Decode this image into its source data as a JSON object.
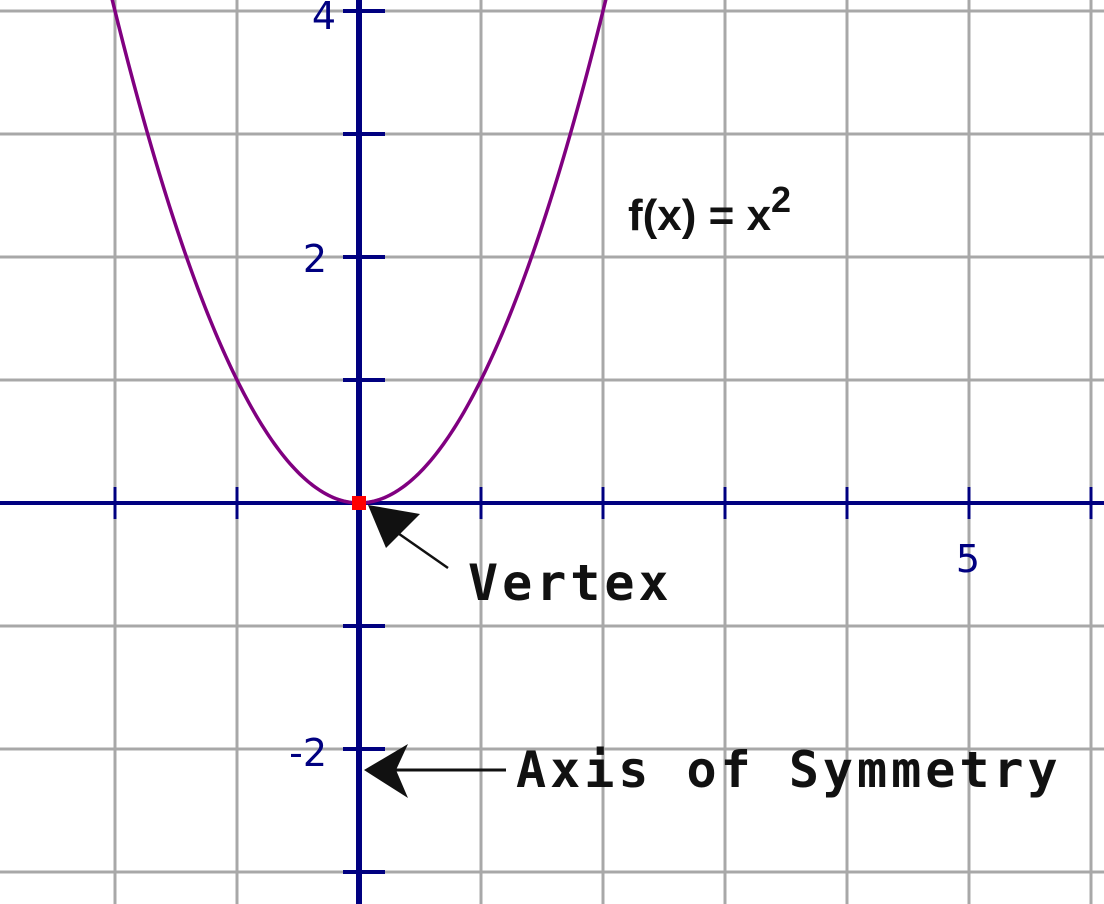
{
  "chart_data": {
    "type": "line",
    "title": "",
    "xlabel": "",
    "ylabel": "",
    "xlim": [
      -2,
      6
    ],
    "ylim": [
      -3,
      4
    ],
    "grid": true,
    "gridlines_every": 1,
    "x_tick_labels": [
      {
        "value": 5,
        "text": "5"
      }
    ],
    "y_tick_labels": [
      {
        "value": 4,
        "text": "4"
      },
      {
        "value": 2,
        "text": "2"
      },
      {
        "value": -2,
        "text": "-2"
      }
    ],
    "series": [
      {
        "function": "x^2",
        "color": "#800080",
        "x": [
          -2,
          -1.5,
          -1,
          -0.5,
          0,
          0.5,
          1,
          1.5,
          2
        ],
        "y": [
          4,
          2.25,
          1,
          0.25,
          0,
          0.25,
          1,
          2.25,
          4
        ]
      }
    ],
    "vertex": {
      "x": 0,
      "y": 0,
      "color": "#ff0000"
    },
    "function_label": {
      "base": "f(x) = x",
      "exponent": "2"
    },
    "annotations": [
      {
        "id": "vertex",
        "text": "Vertex"
      },
      {
        "id": "axis-of-symmetry",
        "text": "Axis of Symmetry"
      }
    ]
  },
  "colors": {
    "axis": "#000080",
    "grid": "#a8a8a8",
    "curve": "#800080",
    "vertex": "#ff0000",
    "annotation": "#111111"
  }
}
